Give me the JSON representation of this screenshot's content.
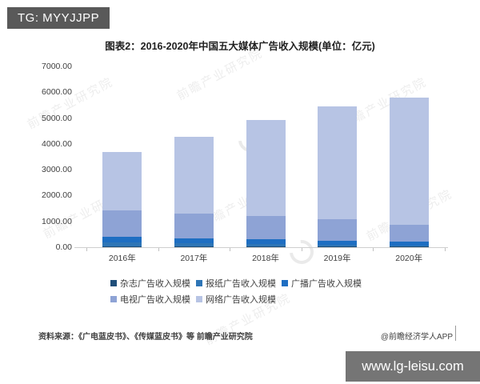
{
  "header": {
    "badge": "TG: MYYJJPP"
  },
  "title": "图表2：2016-2020年中国五大媒体广告收入规模(单位：亿元)",
  "chart_data": {
    "type": "bar",
    "stacked": true,
    "grid": false,
    "legend_position": "bottom",
    "title": "图表2：2016-2020年中国五大媒体广告收入规模(单位：亿元)",
    "xlabel": "",
    "ylabel": "",
    "unit": "亿元",
    "ylim": [
      0,
      7000
    ],
    "y_ticks": [
      "7000.00",
      "6000.00",
      "5000.00",
      "4000.00",
      "3000.00",
      "2000.00",
      "1000.00",
      "0.00"
    ],
    "categories": [
      "2016年",
      "2017年",
      "2018年",
      "2019年",
      "2020年"
    ],
    "series": [
      {
        "name": "杂志广告收入规模",
        "color": "#1F4E79",
        "values": [
          40,
          32,
          25,
          18,
          15
        ]
      },
      {
        "name": "报纸广告收入规模",
        "color": "#2E75B6",
        "values": [
          130,
          113,
          100,
          72,
          60
        ]
      },
      {
        "name": "广播广告收入规模",
        "color": "#1E6EC2",
        "values": [
          230,
          205,
          185,
          160,
          140
        ]
      },
      {
        "name": "电视广告收入规模",
        "color": "#8EA3D5",
        "values": [
          1020,
          950,
          905,
          845,
          655
        ]
      },
      {
        "name": "网络广告收入规模",
        "color": "#B7C4E4",
        "values": [
          2270,
          2980,
          3695,
          4345,
          4920
        ]
      }
    ],
    "totals": [
      3690,
      4280,
      4910,
      5440,
      5790
    ]
  },
  "footer": {
    "source": "资料来源：《广电蓝皮书》、《传媒蓝皮书》等 前瞻产业研究院",
    "credit": "@前瞻经济学人APP"
  },
  "watermark": {
    "text": "前瞻产业研究院",
    "banner": "www.lg-leisu.com"
  },
  "colors": {
    "badge_bg": "#595959",
    "banner_bg": "#757575",
    "axis": "#CFCFCF",
    "text": "#404040"
  }
}
